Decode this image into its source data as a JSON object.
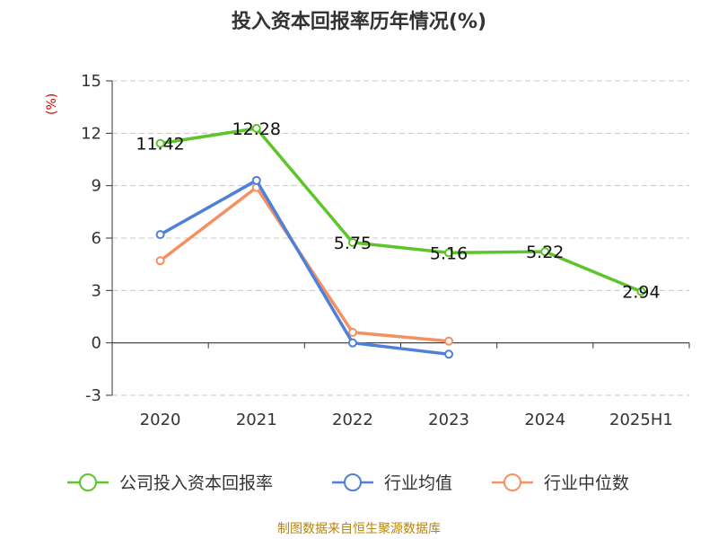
{
  "title": "投入资本回报率历年情况(%)",
  "source": "制图数据来自恒生聚源数据库",
  "chart_data": {
    "type": "line",
    "title": "投入资本回报率历年情况(%)",
    "ylabel": "(%)",
    "ylim": [
      -3,
      15
    ],
    "yticks": [
      -3,
      0,
      3,
      6,
      9,
      12,
      15
    ],
    "categories": [
      "2020",
      "2021",
      "2022",
      "2023",
      "2024",
      "2025H1"
    ],
    "grid": true,
    "legend_position": "bottom",
    "series": [
      {
        "name": "公司投入资本回报率",
        "color": "#5cc52a",
        "values": [
          11.42,
          12.28,
          5.75,
          5.16,
          5.22,
          2.94
        ],
        "labels": [
          "11.42",
          "12.28",
          "5.75",
          "5.16",
          "5.22",
          "2.94"
        ]
      },
      {
        "name": "行业均值",
        "color": "#4e7fd9",
        "values": [
          6.2,
          9.3,
          0.0,
          -0.65,
          null,
          null
        ]
      },
      {
        "name": "行业中位数",
        "color": "#f59160",
        "values": [
          4.7,
          8.9,
          0.6,
          0.1,
          null,
          null
        ]
      }
    ]
  }
}
